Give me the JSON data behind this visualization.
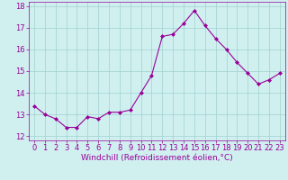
{
  "x": [
    0,
    1,
    2,
    3,
    4,
    5,
    6,
    7,
    8,
    9,
    10,
    11,
    12,
    13,
    14,
    15,
    16,
    17,
    18,
    19,
    20,
    21,
    22,
    23
  ],
  "y": [
    13.4,
    13.0,
    12.8,
    12.4,
    12.4,
    12.9,
    12.8,
    13.1,
    13.1,
    13.2,
    14.0,
    14.8,
    16.6,
    16.7,
    17.2,
    17.8,
    17.1,
    16.5,
    16.0,
    15.4,
    14.9,
    14.4,
    14.6,
    14.9
  ],
  "line_color": "#990099",
  "marker": "D",
  "marker_size": 2,
  "bg_color": "#d0f0f0",
  "grid_color": "#a0d0d0",
  "xlabel": "Windchill (Refroidissement éolien,°C)",
  "xlabel_color": "#990099",
  "ylim": [
    11.8,
    18.2
  ],
  "yticks": [
    12,
    13,
    14,
    15,
    16,
    17,
    18
  ],
  "xlim": [
    -0.5,
    23.5
  ],
  "xticks": [
    0,
    1,
    2,
    3,
    4,
    5,
    6,
    7,
    8,
    9,
    10,
    11,
    12,
    13,
    14,
    15,
    16,
    17,
    18,
    19,
    20,
    21,
    22,
    23
  ],
  "tick_fontsize": 6,
  "xlabel_fontsize": 6.5
}
